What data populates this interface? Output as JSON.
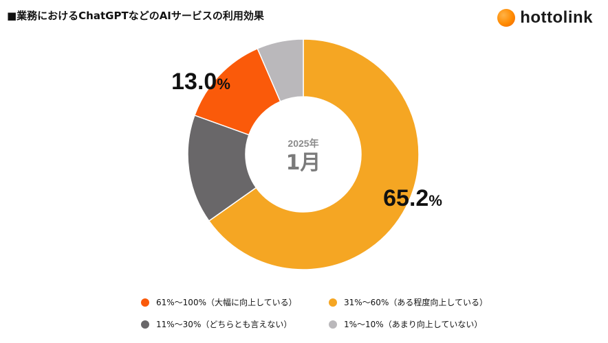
{
  "header": {
    "title": "■業務におけるChatGPTなどのAIサービスの利用効果",
    "logo_text": "hottolink"
  },
  "center": {
    "year": "2025年",
    "month": "1月"
  },
  "chart_data": {
    "type": "pie",
    "title": "■業務におけるChatGPTなどのAIサービスの利用効果",
    "categories": [
      "31%〜60%（ある程度向上している）",
      "11%〜30%（どちらとも言えない）",
      "61%〜100%（大幅に向上している）",
      "1%〜10%（あまり向上していない）"
    ],
    "values": [
      65.2,
      15.3,
      13.0,
      6.5
    ],
    "colors": [
      "#f5a623",
      "#696769",
      "#fa5a0a",
      "#bab8bb"
    ],
    "data_labels": [
      "65.2",
      "",
      "13.0",
      ""
    ],
    "percent_sign": "%",
    "legend": [
      {
        "label": "61%〜100%（大幅に向上している）",
        "color": "#fa5a0a"
      },
      {
        "label": "31%〜60%（ある程度向上している）",
        "color": "#f5a623"
      },
      {
        "label": "11%〜30%（どちらとも言えない）",
        "color": "#696769"
      },
      {
        "label": "1%〜10%（あまり向上していない）",
        "color": "#bab8bb"
      }
    ],
    "legend_position": "bottom"
  }
}
